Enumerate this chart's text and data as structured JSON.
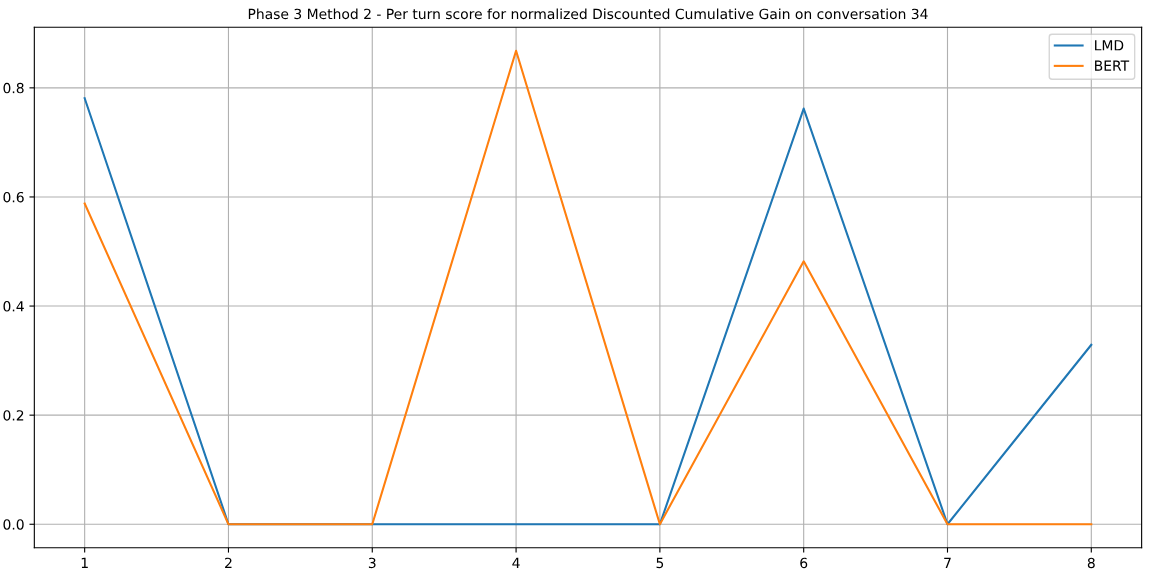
{
  "chart_data": {
    "type": "line",
    "title": "Phase 3 Method 2 - Per turn score for normalized Discounted Cumulative Gain on conversation 34",
    "x": [
      1,
      2,
      3,
      4,
      5,
      6,
      7,
      8
    ],
    "series": [
      {
        "name": "LMD",
        "color": "#1f77b4",
        "values": [
          0.781,
          0,
          0,
          0,
          0,
          0.762,
          0,
          0.329
        ]
      },
      {
        "name": "BERT",
        "color": "#ff7f0e",
        "values": [
          0.588,
          0,
          0,
          0.868,
          0,
          0.482,
          0,
          0
        ]
      }
    ],
    "xlim": [
      0.65,
      8.35
    ],
    "xticks": [
      1,
      2,
      3,
      4,
      5,
      6,
      7,
      8
    ],
    "ylim": [
      -0.043,
      0.911
    ],
    "yticks": [
      {
        "value": 0,
        "label": "0.0"
      },
      {
        "value": 0.2,
        "label": "0.2"
      },
      {
        "value": 0.4,
        "label": "0.4"
      },
      {
        "value": 0.6,
        "label": "0.6"
      },
      {
        "value": 0.8,
        "label": "0.8"
      }
    ],
    "grid": true,
    "legend": "top right",
    "marker": "none",
    "line_style": "solid"
  }
}
